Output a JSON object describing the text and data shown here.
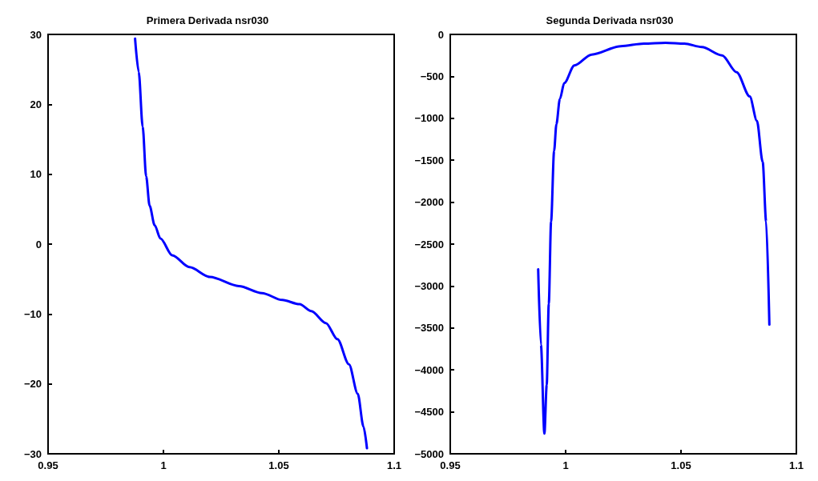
{
  "chart_data": [
    {
      "type": "line",
      "title": "Primera Derivada nsr030",
      "xlim": [
        0.95,
        1.1
      ],
      "xticks": [
        0.95,
        1,
        1.05,
        1.1
      ],
      "ylim": [
        -30,
        30
      ],
      "yticks": [
        -30,
        -20,
        -10,
        0,
        10,
        20,
        30
      ],
      "grid": false,
      "marker": "none",
      "line_style": "solid",
      "series": [
        {
          "color": "#0000ff",
          "x": [
            0.9877,
            0.9893,
            0.991,
            0.9925,
            0.994,
            0.9962,
            0.9987,
            1.0038,
            1.0113,
            1.0201,
            1.0327,
            1.0427,
            1.0515,
            1.059,
            1.0641,
            1.0704,
            1.0754,
            1.0804,
            1.0842,
            1.0867,
            1.0882
          ],
          "values": [
            29.4,
            24.6,
            16.8,
            9.7,
            5.5,
            2.7,
            0.8,
            -1.6,
            -3.3,
            -4.7,
            -6.0,
            -7.0,
            -8.0,
            -8.6,
            -9.6,
            -11.3,
            -13.6,
            -17.2,
            -21.4,
            -26.1,
            -29.2
          ]
        }
      ]
    },
    {
      "type": "line",
      "title": "Segunda Derivada nsr030",
      "xlim": [
        0.95,
        1.1
      ],
      "xticks": [
        0.95,
        1,
        1.05,
        1.1
      ],
      "ylim": [
        -5000,
        0
      ],
      "yticks": [
        -5000,
        -4500,
        -4000,
        -3500,
        -3000,
        -2500,
        -2000,
        -1500,
        -1000,
        -500,
        0
      ],
      "grid": false,
      "marker": "none",
      "line_style": "solid",
      "series": [
        {
          "color": "#0000ff",
          "x": [
            0.9881,
            0.9893,
            0.9908,
            0.9918,
            0.9927,
            0.9937,
            0.995,
            0.996,
            0.9975,
            0.9994,
            1.0038,
            1.0113,
            1.0239,
            1.0339,
            1.0433,
            1.0515,
            1.059,
            1.0678,
            1.0741,
            1.0798,
            1.0829,
            1.0854,
            1.0869,
            1.0883
          ],
          "values": [
            -2800,
            -3700,
            -4760,
            -4180,
            -3210,
            -2230,
            -1390,
            -1070,
            -770,
            -580,
            -370,
            -240,
            -140,
            -110,
            -100,
            -110,
            -150,
            -250,
            -450,
            -740,
            -1030,
            -1520,
            -2230,
            -3460
          ]
        }
      ]
    }
  ]
}
